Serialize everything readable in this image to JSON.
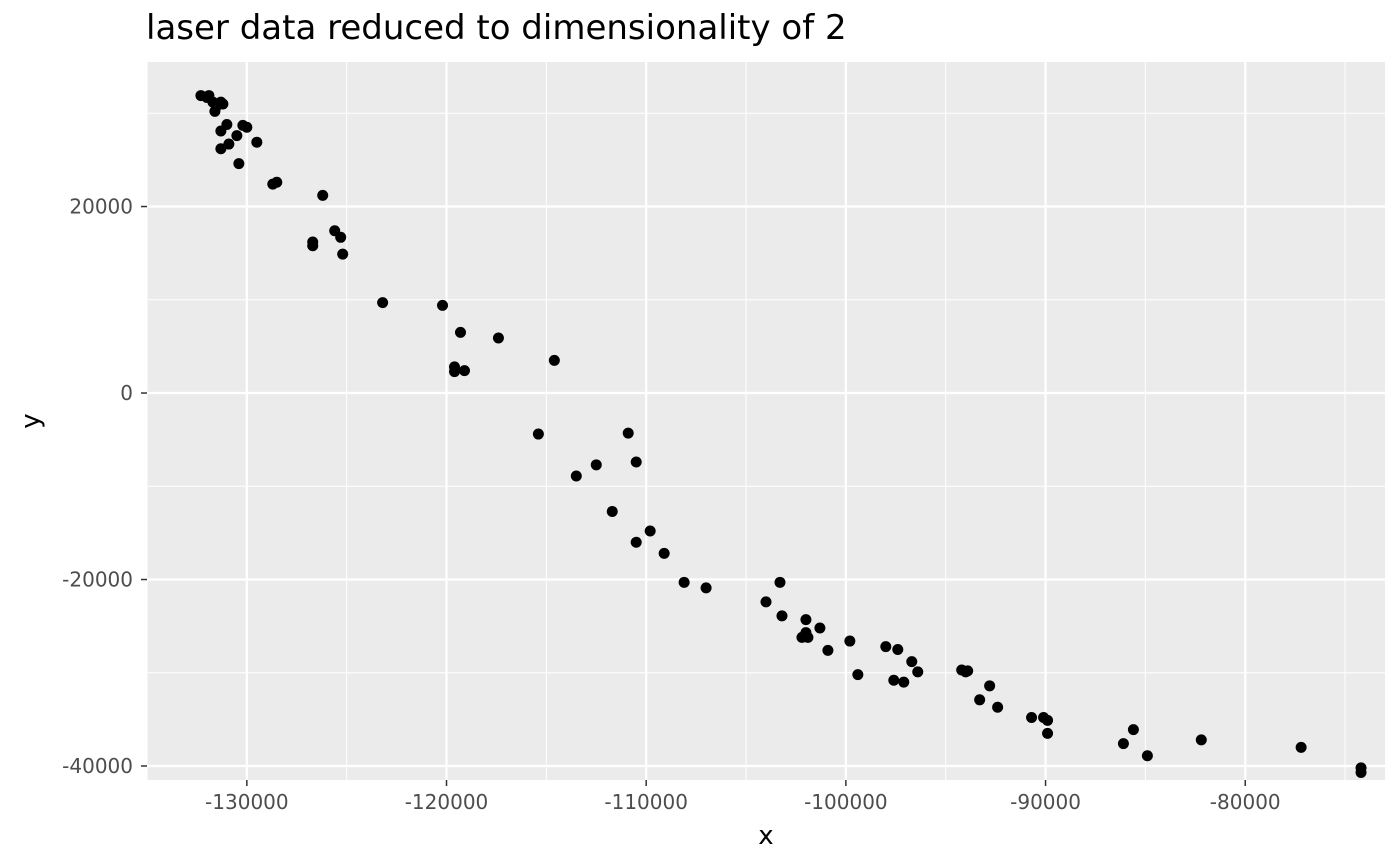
{
  "chart_data": {
    "type": "scatter",
    "title": "laser data reduced to dimensionality of 2",
    "xlabel": "x",
    "ylabel": "y",
    "xlim": [
      -135000,
      -73000
    ],
    "ylim": [
      -41500,
      35500
    ],
    "x_ticks": [
      -130000,
      -120000,
      -110000,
      -100000,
      -90000,
      -80000
    ],
    "x_tick_labels": [
      "-130000",
      "-120000",
      "-110000",
      "-100000",
      "-90000",
      "-80000"
    ],
    "y_ticks": [
      -40000,
      -20000,
      0,
      20000
    ],
    "y_tick_labels": [
      "-40000",
      "-20000",
      "0",
      "20000"
    ],
    "grid": true,
    "point_color": "#000000",
    "panel_background": "#ebebeb",
    "grid_color": "#ffffff",
    "points": [
      {
        "x": -132300,
        "y": 31900
      },
      {
        "x": -132000,
        "y": 31700
      },
      {
        "x": -131900,
        "y": 31900
      },
      {
        "x": -131700,
        "y": 31200
      },
      {
        "x": -131500,
        "y": 30800
      },
      {
        "x": -131600,
        "y": 30200
      },
      {
        "x": -131300,
        "y": 31200
      },
      {
        "x": -131200,
        "y": 31000
      },
      {
        "x": -131300,
        "y": 28100
      },
      {
        "x": -131000,
        "y": 28800
      },
      {
        "x": -130500,
        "y": 27600
      },
      {
        "x": -130200,
        "y": 28700
      },
      {
        "x": -130000,
        "y": 28500
      },
      {
        "x": -131300,
        "y": 26200
      },
      {
        "x": -130900,
        "y": 26700
      },
      {
        "x": -130400,
        "y": 24600
      },
      {
        "x": -129500,
        "y": 26900
      },
      {
        "x": -128700,
        "y": 22400
      },
      {
        "x": -128500,
        "y": 22600
      },
      {
        "x": -126200,
        "y": 21200
      },
      {
        "x": -126700,
        "y": 16200
      },
      {
        "x": -126700,
        "y": 15800
      },
      {
        "x": -125600,
        "y": 17400
      },
      {
        "x": -125300,
        "y": 16700
      },
      {
        "x": -125200,
        "y": 14900
      },
      {
        "x": -123200,
        "y": 9700
      },
      {
        "x": -120200,
        "y": 9400
      },
      {
        "x": -119300,
        "y": 6500
      },
      {
        "x": -119600,
        "y": 2800
      },
      {
        "x": -119600,
        "y": 2300
      },
      {
        "x": -119100,
        "y": 2400
      },
      {
        "x": -117400,
        "y": 5900
      },
      {
        "x": -114600,
        "y": 3500
      },
      {
        "x": -115400,
        "y": -4400
      },
      {
        "x": -113500,
        "y": -8900
      },
      {
        "x": -112500,
        "y": -7700
      },
      {
        "x": -110900,
        "y": -4300
      },
      {
        "x": -110500,
        "y": -7400
      },
      {
        "x": -111700,
        "y": -12700
      },
      {
        "x": -110500,
        "y": -16000
      },
      {
        "x": -109800,
        "y": -14800
      },
      {
        "x": -109100,
        "y": -17200
      },
      {
        "x": -108100,
        "y": -20300
      },
      {
        "x": -107000,
        "y": -20900
      },
      {
        "x": -104000,
        "y": -22400
      },
      {
        "x": -103300,
        "y": -20300
      },
      {
        "x": -103200,
        "y": -23900
      },
      {
        "x": -102200,
        "y": -26200
      },
      {
        "x": -102000,
        "y": -24300
      },
      {
        "x": -102000,
        "y": -25700
      },
      {
        "x": -101900,
        "y": -26200
      },
      {
        "x": -101300,
        "y": -25200
      },
      {
        "x": -100900,
        "y": -27600
      },
      {
        "x": -99800,
        "y": -26600
      },
      {
        "x": -99400,
        "y": -30200
      },
      {
        "x": -98000,
        "y": -27200
      },
      {
        "x": -97400,
        "y": -27500
      },
      {
        "x": -97600,
        "y": -30800
      },
      {
        "x": -97100,
        "y": -31000
      },
      {
        "x": -96700,
        "y": -28800
      },
      {
        "x": -96400,
        "y": -29900
      },
      {
        "x": -94200,
        "y": -29700
      },
      {
        "x": -94000,
        "y": -29900
      },
      {
        "x": -93900,
        "y": -29800
      },
      {
        "x": -93300,
        "y": -32900
      },
      {
        "x": -92800,
        "y": -31400
      },
      {
        "x": -92400,
        "y": -33700
      },
      {
        "x": -90700,
        "y": -34800
      },
      {
        "x": -90100,
        "y": -34800
      },
      {
        "x": -89900,
        "y": -35100
      },
      {
        "x": -89900,
        "y": -36500
      },
      {
        "x": -86100,
        "y": -37600
      },
      {
        "x": -85600,
        "y": -36100
      },
      {
        "x": -84900,
        "y": -38900
      },
      {
        "x": -82200,
        "y": -37200
      },
      {
        "x": -77200,
        "y": -38000
      },
      {
        "x": -74200,
        "y": -40200
      },
      {
        "x": -74200,
        "y": -40700
      }
    ]
  }
}
